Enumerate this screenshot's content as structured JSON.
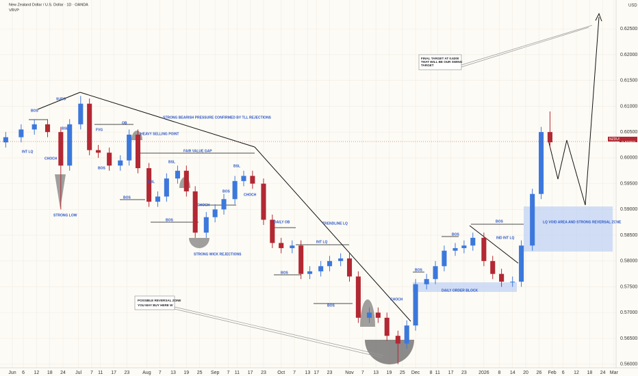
{
  "chart_data": {
    "type": "candlestick",
    "title": "New Zealand Dollar / U.S. Dollar · 1D · OANDA",
    "subtitle": "VRVP",
    "y_axis_label": "USD",
    "symbol": "NZDUSD",
    "last_price": 0.60302,
    "up_color": "#3c78dc",
    "down_color": "#b22833",
    "grid": true,
    "ylim": [
      0.5593,
      0.6306
    ],
    "yticks": [
      {
        "value": 0.56,
        "label": "0.56000"
      },
      {
        "value": 0.565,
        "label": "0.56500"
      },
      {
        "value": 0.57,
        "label": "0.57000"
      },
      {
        "value": 0.575,
        "label": "0.57500"
      },
      {
        "value": 0.58,
        "label": "0.58000"
      },
      {
        "value": 0.585,
        "label": "0.58500"
      },
      {
        "value": 0.59,
        "label": "0.59000"
      },
      {
        "value": 0.595,
        "label": "0.59500"
      },
      {
        "value": 0.6,
        "label": "0.60000"
      },
      {
        "value": 0.605,
        "label": "0.60500"
      },
      {
        "value": 0.61,
        "label": "0.61000"
      },
      {
        "value": 0.615,
        "label": "0.61500"
      },
      {
        "value": 0.62,
        "label": "0.62000"
      },
      {
        "value": 0.625,
        "label": "0.62500"
      }
    ],
    "xlim": [
      -5.6,
      274
    ],
    "xticks": [
      {
        "value": 0,
        "label": "Jun"
      },
      {
        "value": 5,
        "label": "6"
      },
      {
        "value": 11,
        "label": "12"
      },
      {
        "value": 17,
        "label": "18"
      },
      {
        "value": 23,
        "label": "24"
      },
      {
        "value": 30,
        "label": "Jul"
      },
      {
        "value": 36,
        "label": "7"
      },
      {
        "value": 40,
        "label": "11"
      },
      {
        "value": 46,
        "label": "17"
      },
      {
        "value": 52,
        "label": "23"
      },
      {
        "value": 61,
        "label": "Aug"
      },
      {
        "value": 67,
        "label": "7"
      },
      {
        "value": 73,
        "label": "13"
      },
      {
        "value": 79,
        "label": "19"
      },
      {
        "value": 85,
        "label": "25"
      },
      {
        "value": 92,
        "label": "Sep"
      },
      {
        "value": 98,
        "label": "7"
      },
      {
        "value": 102,
        "label": "11"
      },
      {
        "value": 108,
        "label": "17"
      },
      {
        "value": 114,
        "label": "23"
      },
      {
        "value": 122,
        "label": "Oct"
      },
      {
        "value": 128,
        "label": "7"
      },
      {
        "value": 134,
        "label": "13"
      },
      {
        "value": 138,
        "label": "17"
      },
      {
        "value": 144,
        "label": "23"
      },
      {
        "value": 153,
        "label": "Nov"
      },
      {
        "value": 159,
        "label": "7"
      },
      {
        "value": 165,
        "label": "13"
      },
      {
        "value": 171,
        "label": "19"
      },
      {
        "value": 177,
        "label": "25"
      },
      {
        "value": 183,
        "label": "Dec"
      },
      {
        "value": 190,
        "label": "8"
      },
      {
        "value": 193,
        "label": "11"
      },
      {
        "value": 199,
        "label": "17"
      },
      {
        "value": 205,
        "label": "23"
      },
      {
        "value": 214,
        "label": "2026"
      },
      {
        "value": 221,
        "label": "8"
      },
      {
        "value": 227,
        "label": "14"
      },
      {
        "value": 233,
        "label": "20"
      },
      {
        "value": 239,
        "label": "26"
      },
      {
        "value": 245,
        "label": "Feb"
      },
      {
        "value": 250,
        "label": "6"
      },
      {
        "value": 256,
        "label": "12"
      },
      {
        "value": 262,
        "label": "18"
      },
      {
        "value": 268,
        "label": "24"
      },
      {
        "value": 273,
        "label": "Mar"
      }
    ],
    "x": [
      -3,
      4,
      10,
      16,
      22,
      26,
      31,
      35,
      39,
      44,
      49,
      53,
      57,
      62,
      66,
      70,
      75,
      79,
      83,
      88,
      92,
      96,
      101,
      105,
      109,
      114,
      118,
      122,
      127,
      131,
      135,
      140,
      144,
      149,
      153,
      157,
      162,
      166,
      170,
      175,
      179,
      183,
      188,
      192,
      196,
      201,
      205,
      209,
      214,
      218,
      222,
      227,
      231,
      236,
      240,
      244
    ],
    "open": [
      0.603,
      0.604,
      0.6055,
      0.6065,
      0.605,
      0.5985,
      0.6065,
      0.6105,
      0.6015,
      0.601,
      0.5985,
      0.5995,
      0.6045,
      0.598,
      0.5915,
      0.5925,
      0.596,
      0.5975,
      0.5935,
      0.5855,
      0.5885,
      0.59,
      0.592,
      0.5955,
      0.5965,
      0.595,
      0.588,
      0.5835,
      0.5825,
      0.583,
      0.5775,
      0.578,
      0.579,
      0.58,
      0.5805,
      0.577,
      0.569,
      0.57,
      0.569,
      0.5655,
      0.564,
      0.5675,
      0.5755,
      0.5765,
      0.579,
      0.582,
      0.5825,
      0.583,
      0.5845,
      0.58,
      0.5775,
      0.576,
      0.576,
      0.583,
      0.593,
      0.605
    ],
    "high": [
      0.605,
      0.6065,
      0.6075,
      0.6075,
      0.606,
      0.6075,
      0.612,
      0.6115,
      0.6025,
      0.602,
      0.6005,
      0.6055,
      0.6055,
      0.599,
      0.5935,
      0.597,
      0.5985,
      0.5985,
      0.5945,
      0.5895,
      0.591,
      0.593,
      0.5965,
      0.5975,
      0.5975,
      0.596,
      0.589,
      0.5845,
      0.584,
      0.584,
      0.579,
      0.58,
      0.581,
      0.5815,
      0.5815,
      0.578,
      0.571,
      0.571,
      0.57,
      0.5665,
      0.5685,
      0.5765,
      0.5775,
      0.58,
      0.583,
      0.5835,
      0.584,
      0.5855,
      0.5855,
      0.581,
      0.5785,
      0.577,
      0.584,
      0.594,
      0.606,
      0.609
    ],
    "low": [
      0.602,
      0.603,
      0.6045,
      0.604,
      0.59,
      0.5975,
      0.6055,
      0.6005,
      0.6,
      0.5975,
      0.5975,
      0.5985,
      0.597,
      0.5905,
      0.5905,
      0.5915,
      0.595,
      0.5925,
      0.5845,
      0.5845,
      0.5875,
      0.589,
      0.591,
      0.5945,
      0.594,
      0.587,
      0.5825,
      0.5815,
      0.5815,
      0.5765,
      0.5765,
      0.577,
      0.578,
      0.579,
      0.576,
      0.568,
      0.568,
      0.568,
      0.5645,
      0.56,
      0.563,
      0.5665,
      0.5745,
      0.5755,
      0.578,
      0.581,
      0.5815,
      0.582,
      0.579,
      0.5765,
      0.575,
      0.575,
      0.575,
      0.582,
      0.592,
      0.602
    ],
    "close": [
      0.604,
      0.6055,
      0.6065,
      0.605,
      0.5985,
      0.6065,
      0.6105,
      0.6015,
      0.601,
      0.5985,
      0.5995,
      0.6045,
      0.598,
      0.5915,
      0.5925,
      0.596,
      0.5975,
      0.5935,
      0.5855,
      0.5885,
      0.59,
      0.592,
      0.5955,
      0.5965,
      0.595,
      0.588,
      0.5835,
      0.5825,
      0.583,
      0.5775,
      0.578,
      0.579,
      0.58,
      0.5805,
      0.577,
      0.569,
      0.57,
      0.569,
      0.5655,
      0.564,
      0.5675,
      0.5755,
      0.5765,
      0.579,
      0.582,
      0.5825,
      0.583,
      0.5845,
      0.58,
      0.5775,
      0.576,
      0.576,
      0.583,
      0.593,
      0.605,
      0.60302
    ],
    "annotations": [
      "BOS",
      "SUDO",
      "BSL",
      "INT LQ",
      "CHOCH",
      "STRONG LOW",
      "FVG",
      "OB",
      "BOS",
      "HEAVY SELLING POINT",
      "STRONG BEARISH PRESSURE CONFIRMED BY TLL REJECTIONS",
      "FAIR VALUE GAP",
      "BSL",
      "BSL",
      "BOS",
      "BOS",
      "CHOCH",
      "BOS",
      "BSL",
      "CHOCH",
      "STRONG WICK REJECTIONS",
      "DAILY OB",
      "TRENDLINE LQ",
      "INT LQ",
      "BOS",
      "BOS",
      "CHOCH",
      "BOS",
      "DAILY ORDER BLOCK",
      "BOS",
      "BOS",
      "IND INT LQ",
      "LQ VOID AREA AND STRONG REVERSAL ZONE",
      "POSSIBLE REVERSAL ZONE",
      "YOU MAY BUY HERE W",
      "FINAL TARGET AT 0.6300",
      "THAT WILL BE OUR SWING",
      "TARGET"
    ]
  }
}
